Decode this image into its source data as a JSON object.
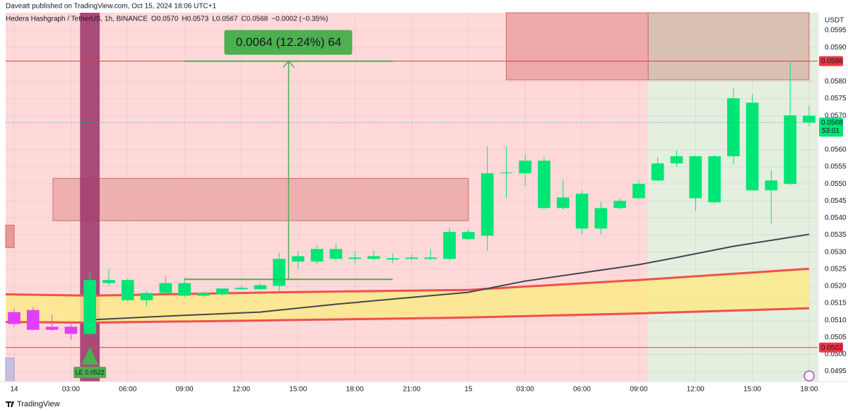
{
  "chart_data": {
    "type": "candlestick",
    "header": "Daveatt published on TradingView.com, Oct 15, 2024 18:06 UTC+1",
    "legend": {
      "symbol": "Hedera Hashgraph / TetherUS, 1h, BINANCE",
      "ohlc": [
        {
          "key": "O",
          "value": "0.0570"
        },
        {
          "key": "H",
          "value": "0.0573"
        },
        {
          "key": "L",
          "value": "0.0567"
        },
        {
          "key": "C",
          "value": "0.0568"
        }
      ],
      "change": "−0.0002 (−0.35%)"
    },
    "axis_unit": "USDT",
    "footer": "TradingView",
    "xlim": [
      -0.45,
      42.45
    ],
    "ylim": [
      0.0492,
      0.06002
    ],
    "grid": true,
    "xticks": [
      {
        "value": 0,
        "label": "14"
      },
      {
        "value": 3,
        "label": "03:00"
      },
      {
        "value": 6,
        "label": "06:00"
      },
      {
        "value": 9,
        "label": "09:00"
      },
      {
        "value": 12,
        "label": "12:00"
      },
      {
        "value": 15,
        "label": "15:00"
      },
      {
        "value": 18,
        "label": "18:00"
      },
      {
        "value": 21,
        "label": "21:00"
      },
      {
        "value": 24,
        "label": "15"
      },
      {
        "value": 27,
        "label": "03:00"
      },
      {
        "value": 30,
        "label": "06:00"
      },
      {
        "value": 33,
        "label": "09:00"
      },
      {
        "value": 36,
        "label": "12:00"
      },
      {
        "value": 39,
        "label": "15:00"
      },
      {
        "value": 42,
        "label": "18:00"
      }
    ],
    "yticks": [
      0.0595,
      {
        "value": 0.059,
        "label": "0.0590"
      },
      {
        "value": 0.058,
        "label": "0.0580"
      },
      0.0575,
      {
        "value": 0.057,
        "label": "0.0570"
      },
      {
        "value": 0.056,
        "label": "0.0560"
      },
      0.0555,
      {
        "value": 0.055,
        "label": "0.0550"
      },
      0.0545,
      {
        "value": 0.054,
        "label": "0.0540"
      },
      0.0535,
      {
        "value": 0.053,
        "label": "0.0530"
      },
      0.0525,
      {
        "value": 0.052,
        "label": "0.0520"
      },
      0.0515,
      {
        "value": 0.051,
        "label": "0.0510"
      },
      0.0505,
      {
        "value": 0.05,
        "label": "0.0500"
      },
      0.0495
    ],
    "background_regions": [
      {
        "x": [
          -0.45,
          33.5
        ],
        "color": "#ffd9d9"
      },
      {
        "x": [
          33.5,
          42.45
        ],
        "color": "#e4efdf"
      }
    ],
    "zones": [
      {
        "x": [
          2.05,
          24
        ],
        "y": [
          0.05516,
          0.05392
        ],
        "color": "#eeafaf",
        "border": "#d46a6a"
      },
      {
        "x": [
          26,
          33.5
        ],
        "y": [
          0.06002,
          0.05805
        ],
        "color": "#eda9a9",
        "border": "#d46a6a"
      },
      {
        "x": [
          33.5,
          42
        ],
        "y": [
          0.06002,
          0.05805
        ],
        "color": "#d8c0b2",
        "border": "#d46a6a"
      },
      {
        "x": [
          -0.45,
          0
        ],
        "y": [
          0.05379,
          0.05313
        ],
        "color": "#e79a9a",
        "border": "#d46a6a"
      },
      {
        "x": [
          -0.45,
          0
        ],
        "y": [
          0.04989,
          0.0492
        ],
        "color": "#c8c0df",
        "border": "#a99ccc"
      }
    ],
    "highlight": {
      "x": 4,
      "color": "#9e3b6e"
    },
    "band": {
      "x": [
        -0.45,
        4,
        14,
        24,
        33,
        42
      ],
      "upper": [
        0.05176,
        0.05172,
        0.05182,
        0.05189,
        0.05218,
        0.05251
      ],
      "lower": [
        0.05095,
        0.05093,
        0.051,
        0.05108,
        0.0512,
        0.05135
      ],
      "fill": "#fbe98a",
      "line_color": "#f0504a"
    },
    "lines": [
      {
        "color": "#434651",
        "x": [
          4,
          8,
          13,
          17,
          24,
          27,
          33,
          35,
          38,
          42
        ],
        "values": [
          0.05101,
          0.05112,
          0.05124,
          0.05147,
          0.05182,
          0.05215,
          0.05263,
          0.05284,
          0.05317,
          0.05352
        ]
      }
    ],
    "hlines": [
      {
        "value": 0.0586,
        "color": "#f23645"
      },
      {
        "value": 0.0502,
        "color": "#f23645"
      }
    ],
    "measure": {
      "x": [
        9,
        20
      ],
      "arrow_x": 14.5,
      "from": 0.0522,
      "to": 0.0586,
      "label": "0.0064 (12.24%) 64",
      "color": "#4caf50"
    },
    "signal": {
      "x": 4,
      "label": "LE 0.0522",
      "color": "#4caf50"
    },
    "countdown": "53:01",
    "candles": {
      "x": [
        0,
        1,
        2,
        3,
        4,
        5,
        6,
        7,
        8,
        9,
        10,
        11,
        12,
        13,
        14,
        15,
        16,
        17,
        18,
        19,
        20,
        21,
        22,
        23,
        24,
        25,
        26,
        27,
        28,
        29,
        30,
        31,
        32,
        33,
        34,
        35,
        36,
        37,
        38,
        39,
        40,
        41,
        42
      ],
      "open": [
        0.05124,
        0.0513,
        0.05081,
        0.05081,
        0.0506,
        0.05218,
        0.05218,
        0.05159,
        0.0518,
        0.05209,
        0.05172,
        0.05176,
        0.05191,
        0.05191,
        0.05201,
        0.05272,
        0.05272,
        0.05309,
        0.0528,
        0.0528,
        0.05282,
        0.0528,
        0.05284,
        0.0528,
        0.05359,
        0.05348,
        0.05531,
        0.05531,
        0.05568,
        0.05429,
        0.05471,
        0.05369,
        0.05429,
        0.05458,
        0.0551,
        0.0556,
        0.05581,
        0.05446,
        0.05581,
        0.05738,
        0.05481,
        0.055,
        0.057
      ],
      "high": [
        0.05135,
        0.05139,
        0.05116,
        0.05089,
        0.05242,
        0.05249,
        0.05222,
        0.05184,
        0.0523,
        0.05226,
        0.05184,
        0.05193,
        0.05201,
        0.05209,
        0.05298,
        0.05303,
        0.05321,
        0.05325,
        0.05301,
        0.05305,
        0.05296,
        0.05292,
        0.05309,
        0.05371,
        0.05367,
        0.0561,
        0.0561,
        0.05589,
        0.05579,
        0.05512,
        0.05479,
        0.05448,
        0.05458,
        0.05512,
        0.05579,
        0.05599,
        0.05585,
        0.05585,
        0.0578,
        0.05763,
        0.05541,
        0.05861,
        0.0573
      ],
      "low": [
        0.05081,
        0.0507,
        0.05068,
        0.05043,
        0.05052,
        0.05201,
        0.05155,
        0.05143,
        0.05176,
        0.05168,
        0.05168,
        0.05172,
        0.05189,
        0.05189,
        0.05184,
        0.05251,
        0.05263,
        0.05276,
        0.05267,
        0.05276,
        0.05267,
        0.05276,
        0.05276,
        0.05276,
        0.05334,
        0.05303,
        0.05458,
        0.05494,
        0.05425,
        0.05425,
        0.05352,
        0.05352,
        0.05425,
        0.05454,
        0.05508,
        0.0555,
        0.05421,
        0.05442,
        0.05558,
        0.05481,
        0.05384,
        0.05496,
        0.0567
      ],
      "close": [
        0.05089,
        0.05072,
        0.05072,
        0.0506,
        0.05218,
        0.05209,
        0.05159,
        0.0518,
        0.05209,
        0.05172,
        0.0518,
        0.05193,
        0.05195,
        0.05203,
        0.0528,
        0.05288,
        0.05309,
        0.0528,
        0.05284,
        0.05288,
        0.05278,
        0.05284,
        0.0528,
        0.05359,
        0.05338,
        0.05531,
        0.05533,
        0.05568,
        0.05429,
        0.0546,
        0.05369,
        0.05429,
        0.0545,
        0.055,
        0.0556,
        0.05581,
        0.05458,
        0.05581,
        0.05751,
        0.05481,
        0.0551,
        0.05701,
        0.0568
      ],
      "colors": [
        "#e040fb",
        "#e040fb",
        "#e040fb",
        "#e040fb",
        "#00e676",
        "#00e676",
        "#00e676",
        "#00e676",
        "#00e676",
        "#00e676",
        "#00e676",
        "#00e676",
        "#00e676",
        "#00e676",
        "#00e676",
        "#00e676",
        "#00e676",
        "#00e676",
        "#00e676",
        "#00e676",
        "#00e676",
        "#00e676",
        "#00e676",
        "#00e676",
        "#00e676",
        "#00e676",
        "#00e676",
        "#00e676",
        "#00e676",
        "#00e676",
        "#00e676",
        "#00e676",
        "#00e676",
        "#00e676",
        "#00e676",
        "#00e676",
        "#00e676",
        "#00e676",
        "#00e676",
        "#00e676",
        "#00e676",
        "#00e676",
        "#00e676"
      ]
    }
  }
}
